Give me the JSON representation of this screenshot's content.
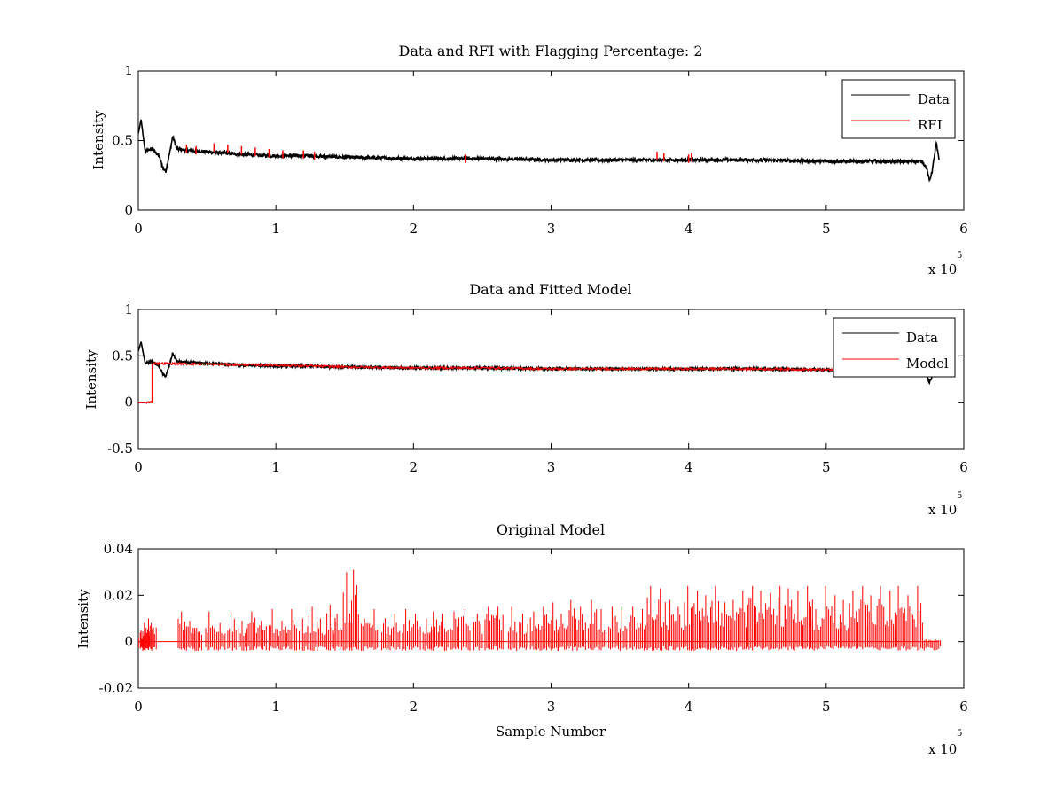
{
  "chart_data": [
    {
      "type": "line",
      "title": "Data and RFI with Flagging Percentage: 2",
      "xlabel": "",
      "ylabel": "Intensity",
      "xlim": [
        0,
        6
      ],
      "ylim": [
        0,
        1
      ],
      "x_multiplier_base": "x 10",
      "x_multiplier_exp": "5",
      "xticks": [
        "0",
        "1",
        "2",
        "3",
        "4",
        "5",
        "6"
      ],
      "yticks": [
        "0",
        "0.5",
        "1"
      ],
      "legend": {
        "placement": "top-right",
        "entries": [
          "Data",
          "RFI"
        ]
      },
      "series": [
        {
          "name": "Data",
          "color": "#000000",
          "x": [
            0,
            0.02,
            0.05,
            0.1,
            0.15,
            0.18,
            0.2,
            0.23,
            0.25,
            0.28,
            0.35,
            0.5,
            0.75,
            1.0,
            1.25,
            1.5,
            2.0,
            2.5,
            3.0,
            3.5,
            4.0,
            4.5,
            5.0,
            5.5,
            5.7,
            5.73,
            5.75,
            5.77,
            5.8,
            5.82
          ],
          "y": [
            0.55,
            0.65,
            0.42,
            0.44,
            0.39,
            0.3,
            0.28,
            0.42,
            0.53,
            0.44,
            0.43,
            0.42,
            0.4,
            0.39,
            0.39,
            0.38,
            0.37,
            0.37,
            0.36,
            0.36,
            0.36,
            0.36,
            0.35,
            0.35,
            0.35,
            0.3,
            0.21,
            0.28,
            0.48,
            0.36
          ]
        },
        {
          "name": "RFI",
          "color": "#ff0000",
          "x": [
            0.35,
            0.42,
            0.55,
            0.65,
            0.75,
            0.85,
            0.95,
            1.05,
            1.2,
            1.28,
            2.38,
            3.77,
            3.82,
            4.0,
            4.02
          ],
          "y": [
            0.47,
            0.46,
            0.48,
            0.47,
            0.46,
            0.45,
            0.44,
            0.43,
            0.43,
            0.42,
            0.4,
            0.42,
            0.41,
            0.4,
            0.41
          ]
        }
      ]
    },
    {
      "type": "line",
      "title": "Data and Fitted Model",
      "xlabel": "",
      "ylabel": "Intensity",
      "xlim": [
        0,
        6
      ],
      "ylim": [
        -0.5,
        1
      ],
      "x_multiplier_base": "x 10",
      "x_multiplier_exp": "5",
      "xticks": [
        "0",
        "1",
        "2",
        "3",
        "4",
        "5",
        "6"
      ],
      "yticks": [
        "-0.5",
        "0",
        "0.5",
        "1"
      ],
      "legend": {
        "placement": "top-right",
        "entries": [
          "Data",
          "Model"
        ]
      },
      "series": [
        {
          "name": "Data",
          "color": "#000000",
          "x": [
            0,
            0.02,
            0.05,
            0.1,
            0.15,
            0.18,
            0.2,
            0.23,
            0.25,
            0.28,
            0.35,
            0.5,
            0.75,
            1.0,
            1.25,
            1.5,
            2.0,
            2.5,
            3.0,
            3.5,
            4.0,
            4.5,
            5.0,
            5.5,
            5.7,
            5.73,
            5.75,
            5.77,
            5.8,
            5.82
          ],
          "y": [
            0.55,
            0.65,
            0.42,
            0.44,
            0.39,
            0.3,
            0.28,
            0.42,
            0.53,
            0.44,
            0.43,
            0.42,
            0.4,
            0.39,
            0.39,
            0.38,
            0.37,
            0.37,
            0.36,
            0.36,
            0.36,
            0.36,
            0.35,
            0.35,
            0.35,
            0.3,
            0.21,
            0.28,
            0.48,
            0.36
          ]
        },
        {
          "name": "Model",
          "color": "#ff0000",
          "x": [
            0,
            0.1,
            0.1,
            0.5,
            1.0,
            1.5,
            2.0,
            2.5,
            3.0,
            3.5,
            4.0,
            4.5,
            5.0,
            5.5,
            5.82
          ],
          "y": [
            0,
            0,
            0.42,
            0.41,
            0.4,
            0.38,
            0.37,
            0.37,
            0.36,
            0.36,
            0.36,
            0.36,
            0.35,
            0.35,
            0.35
          ]
        }
      ]
    },
    {
      "type": "line",
      "title": "Original Model",
      "xlabel": "Sample Number",
      "ylabel": "Intensity",
      "xlim": [
        0,
        6
      ],
      "ylim": [
        -0.02,
        0.04
      ],
      "x_multiplier_base": "x 10",
      "x_multiplier_exp": "5",
      "xticks": [
        "0",
        "1",
        "2",
        "3",
        "4",
        "5",
        "6"
      ],
      "yticks": [
        "-0.02",
        "0",
        "0.02",
        "0.04"
      ],
      "series": [
        {
          "color": "#ff0000",
          "spikes": [
            [
              0.02,
              0.004
            ],
            [
              0.05,
              0.008
            ],
            [
              0.08,
              0.01
            ],
            [
              0.1,
              0.008
            ],
            [
              0.32,
              0.013
            ],
            [
              0.38,
              0.009
            ],
            [
              0.43,
              0.006
            ],
            [
              0.52,
              0.013
            ],
            [
              0.6,
              0.008
            ],
            [
              0.68,
              0.013
            ],
            [
              0.76,
              0.009
            ],
            [
              0.83,
              0.013
            ],
            [
              0.9,
              0.009
            ],
            [
              0.98,
              0.014
            ],
            [
              1.05,
              0.009
            ],
            [
              1.12,
              0.014
            ],
            [
              1.2,
              0.01
            ],
            [
              1.27,
              0.015
            ],
            [
              1.33,
              0.01
            ],
            [
              1.4,
              0.016
            ],
            [
              1.45,
              0.012
            ],
            [
              1.52,
              0.03
            ],
            [
              1.57,
              0.031
            ],
            [
              1.65,
              0.01
            ],
            [
              1.72,
              0.014
            ],
            [
              1.8,
              0.01
            ],
            [
              1.87,
              0.012
            ],
            [
              1.95,
              0.014
            ],
            [
              2.02,
              0.012
            ],
            [
              2.1,
              0.01
            ],
            [
              2.15,
              0.013
            ],
            [
              2.22,
              0.012
            ],
            [
              2.3,
              0.013
            ],
            [
              2.38,
              0.014
            ],
            [
              2.47,
              0.012
            ],
            [
              2.55,
              0.015
            ],
            [
              2.62,
              0.015
            ],
            [
              2.72,
              0.015
            ],
            [
              2.8,
              0.012
            ],
            [
              2.88,
              0.013
            ],
            [
              2.95,
              0.015
            ],
            [
              3.02,
              0.017
            ],
            [
              3.08,
              0.012
            ],
            [
              3.15,
              0.018
            ],
            [
              3.22,
              0.015
            ],
            [
              3.3,
              0.018
            ],
            [
              3.37,
              0.014
            ],
            [
              3.45,
              0.015
            ],
            [
              3.52,
              0.015
            ],
            [
              3.6,
              0.015
            ],
            [
              3.67,
              0.014
            ],
            [
              3.73,
              0.024
            ],
            [
              3.8,
              0.023
            ],
            [
              3.87,
              0.018
            ],
            [
              3.93,
              0.015
            ],
            [
              4.0,
              0.024
            ],
            [
              4.07,
              0.022
            ],
            [
              4.13,
              0.02
            ],
            [
              4.2,
              0.024
            ],
            [
              4.27,
              0.017
            ],
            [
              4.33,
              0.018
            ],
            [
              4.4,
              0.022
            ],
            [
              4.47,
              0.024
            ],
            [
              4.53,
              0.022
            ],
            [
              4.6,
              0.021
            ],
            [
              4.67,
              0.024
            ],
            [
              4.73,
              0.023
            ],
            [
              4.8,
              0.022
            ],
            [
              4.87,
              0.024
            ],
            [
              4.93,
              0.014
            ],
            [
              5.0,
              0.024
            ],
            [
              5.07,
              0.02
            ],
            [
              5.13,
              0.018
            ],
            [
              5.2,
              0.022
            ],
            [
              5.27,
              0.024
            ],
            [
              5.33,
              0.02
            ],
            [
              5.4,
              0.024
            ],
            [
              5.47,
              0.022
            ],
            [
              5.53,
              0.024
            ],
            [
              5.6,
              0.02
            ],
            [
              5.67,
              0.024
            ],
            [
              5.73,
              0.001
            ],
            [
              5.8,
              0.001
            ]
          ],
          "baseline": 0,
          "x_end": 5.82
        }
      ]
    }
  ]
}
